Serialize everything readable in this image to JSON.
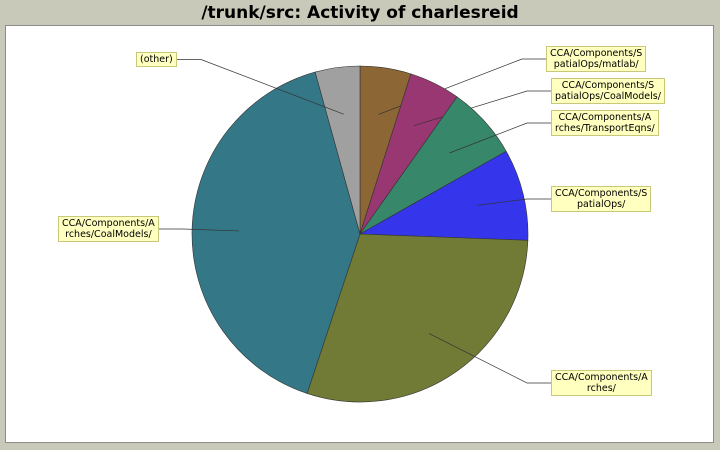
{
  "title": "/trunk/src: Activity of charlesreid",
  "chart_data": {
    "type": "pie",
    "title": "/trunk/src: Activity of charlesreid",
    "start_angle_deg": 90,
    "direction": "clockwise",
    "slices": [
      {
        "label": "CCA/Components/S\npatialOps/matlab/",
        "value": 4.9,
        "color": "#8c6634"
      },
      {
        "label": "CCA/Components/S\npatialOps/CoalModels/",
        "value": 4.9,
        "color": "#993772"
      },
      {
        "label": "CCA/Components/A\nrches/TransportEqns/",
        "value": 7.0,
        "color": "#37886a"
      },
      {
        "label": "CCA/Components/S\npatialOps/",
        "value": 8.8,
        "color": "#3535ec"
      },
      {
        "label": "CCA/Components/A\nrches/",
        "value": 29.5,
        "color": "#717b35"
      },
      {
        "label": "CCA/Components/A\nrches/CoalModels/",
        "value": 40.6,
        "color": "#347888"
      },
      {
        "label": "(other)",
        "value": 4.3,
        "color": "#a0a0a0"
      }
    ]
  }
}
